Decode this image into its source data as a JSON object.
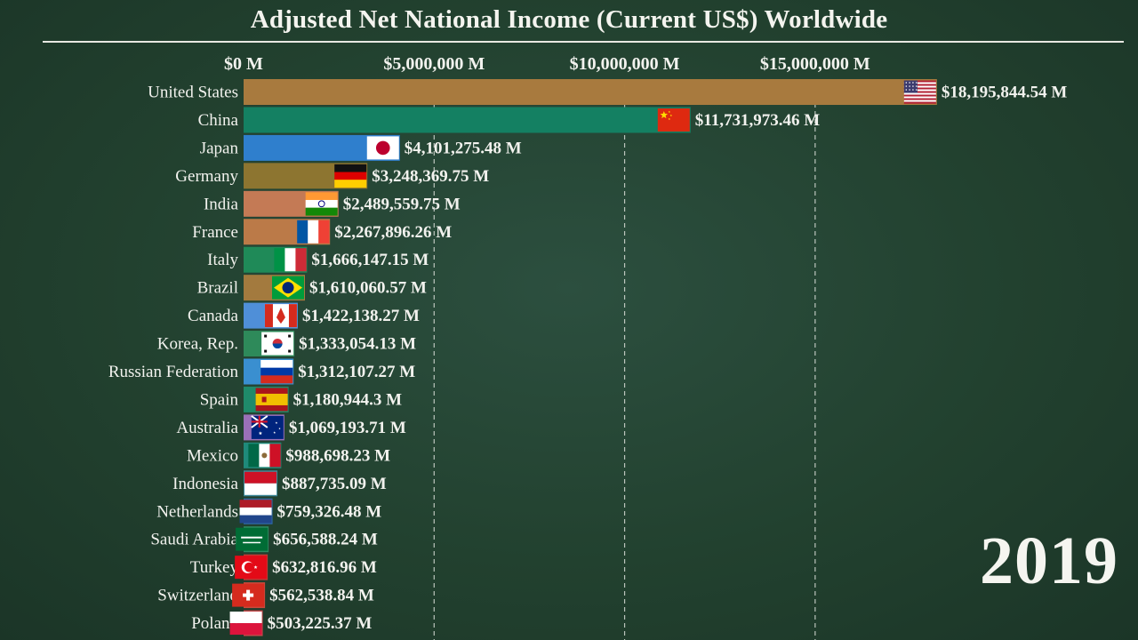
{
  "chart_data": {
    "type": "bar",
    "title": "Adjusted Net National Income (Current US$) Worldwide",
    "year": "2019",
    "x_ticks": [
      {
        "value": 0,
        "label": "$0 M"
      },
      {
        "value": 5000000,
        "label": "$5,000,000 M"
      },
      {
        "value": 10000000,
        "label": "$10,000,000 M"
      },
      {
        "value": 15000000,
        "label": "$15,000,000 M"
      }
    ],
    "xlim": [
      0,
      18200000
    ],
    "grid": true,
    "categories": [
      "United States",
      "China",
      "Japan",
      "Germany",
      "India",
      "France",
      "Italy",
      "Brazil",
      "Canada",
      "Korea, Rep.",
      "Russian Federation",
      "Spain",
      "Australia",
      "Mexico",
      "Indonesia",
      "Netherlands",
      "Saudi Arabia",
      "Turkey",
      "Switzerland",
      "Poland"
    ],
    "values": [
      18195844.54,
      11731973.46,
      4101275.48,
      3248369.75,
      2489559.75,
      2267896.26,
      1666147.15,
      1610060.57,
      1422138.27,
      1333054.13,
      1312107.27,
      1180944.3,
      1069193.71,
      988698.23,
      887735.09,
      759326.48,
      656588.24,
      632816.96,
      562538.84,
      503225.37
    ],
    "value_labels": [
      "$18,195,844.54 M",
      "$11,731,973.46 M",
      "$4,101,275.48 M",
      "$3,248,369.75 M",
      "$2,489,559.75 M",
      "$2,267,896.26 M",
      "$1,666,147.15 M",
      "$1,610,060.57 M",
      "$1,422,138.27 M",
      "$1,333,054.13 M",
      "$1,312,107.27 M",
      "$1,180,944.3 M",
      "$1,069,193.71 M",
      "$988,698.23 M",
      "$887,735.09 M",
      "$759,326.48 M",
      "$656,588.24 M",
      "$632,816.96 M",
      "$562,538.84 M",
      "$503,225.37 M"
    ],
    "colors": [
      "#a87a3e",
      "#148062",
      "#2f7fcd",
      "#8d7530",
      "#c47a55",
      "#bb7a48",
      "#1f8a58",
      "#a37a3e",
      "#4f8fd8",
      "#2e8a5a",
      "#3a8fd0",
      "#1f8a6a",
      "#9a70b8",
      "#1f8a7a",
      "#3f8a9a",
      "#2f6aa8",
      "#2f8a62",
      "#bf3a36",
      "#c94a3c",
      "#c4484a"
    ],
    "flags": [
      "us",
      "cn",
      "jp",
      "de",
      "in",
      "fr",
      "it",
      "br",
      "ca",
      "kr",
      "ru",
      "es",
      "au",
      "mx",
      "id",
      "nl",
      "sa",
      "tr",
      "ch",
      "pl"
    ]
  }
}
